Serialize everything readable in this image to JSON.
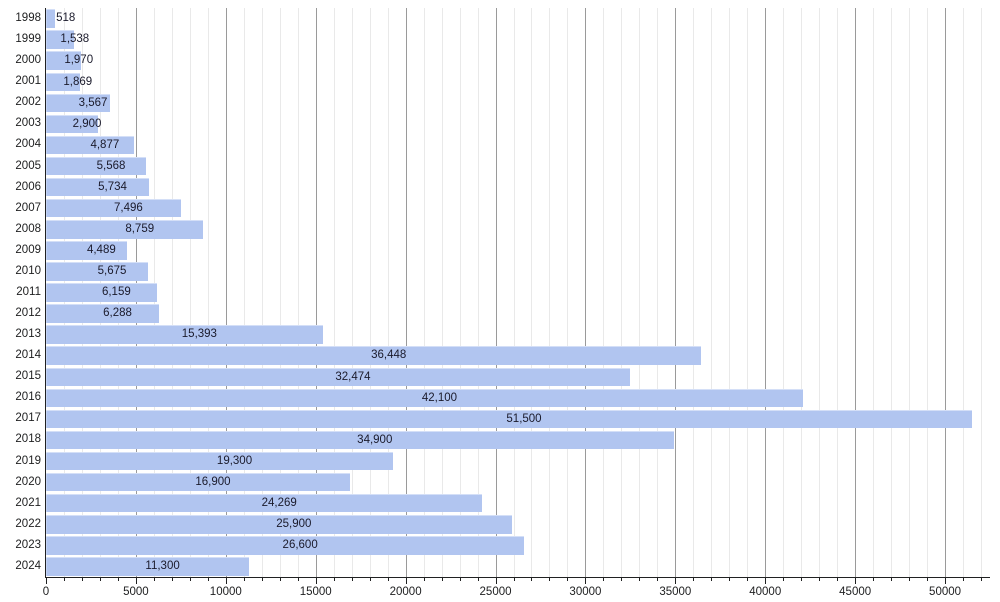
{
  "chart_data": {
    "type": "bar",
    "orientation": "horizontal",
    "title": "",
    "xlabel": "",
    "ylabel": "",
    "categories": [
      "1998",
      "1999",
      "2000",
      "2001",
      "2002",
      "2003",
      "2004",
      "2005",
      "2006",
      "2007",
      "2008",
      "2009",
      "2010",
      "2011",
      "2012",
      "2013",
      "2014",
      "2015",
      "2016",
      "2017",
      "2018",
      "2019",
      "2020",
      "2021",
      "2022",
      "2023",
      "2024"
    ],
    "values": [
      518,
      1538,
      1970,
      1869,
      3567,
      2900,
      4877,
      5568,
      5734,
      7496,
      8759,
      4489,
      5675,
      6159,
      6288,
      15393,
      36448,
      32474,
      42100,
      51500,
      34900,
      19300,
      16900,
      24269,
      25900,
      26600,
      11300
    ],
    "value_labels": [
      "518",
      "1,538",
      "1,970",
      "1,869",
      "3,567",
      "2,900",
      "4,877",
      "5,568",
      "5,734",
      "7,496",
      "8,759",
      "4,489",
      "5,675",
      "6,159",
      "6,288",
      "15,393",
      "36,448",
      "32,474",
      "42,100",
      "51,500",
      "34,900",
      "19,300",
      "16,900",
      "24,269",
      "25,900",
      "26,600",
      "11,300"
    ],
    "xlim": [
      0,
      52500
    ],
    "x_major_ticks": [
      0,
      5000,
      10000,
      15000,
      20000,
      25000,
      30000,
      35000,
      40000,
      45000,
      50000
    ],
    "x_tick_labels": [
      "0",
      "5000",
      "10000",
      "15000",
      "20000",
      "25000",
      "30000",
      "35000",
      "40000",
      "45000",
      "50000"
    ],
    "minor_tick_interval": 1000,
    "grid": "on",
    "legend": "none",
    "colors": {
      "bar_fill": "#b1c5f0",
      "grid_minor": "#e9e9e9",
      "grid_major": "#9a9a9a",
      "axis": "#202122",
      "value_label_text": "#1a1a2b",
      "tick_text": "#202122",
      "background": "#ffffff"
    }
  }
}
